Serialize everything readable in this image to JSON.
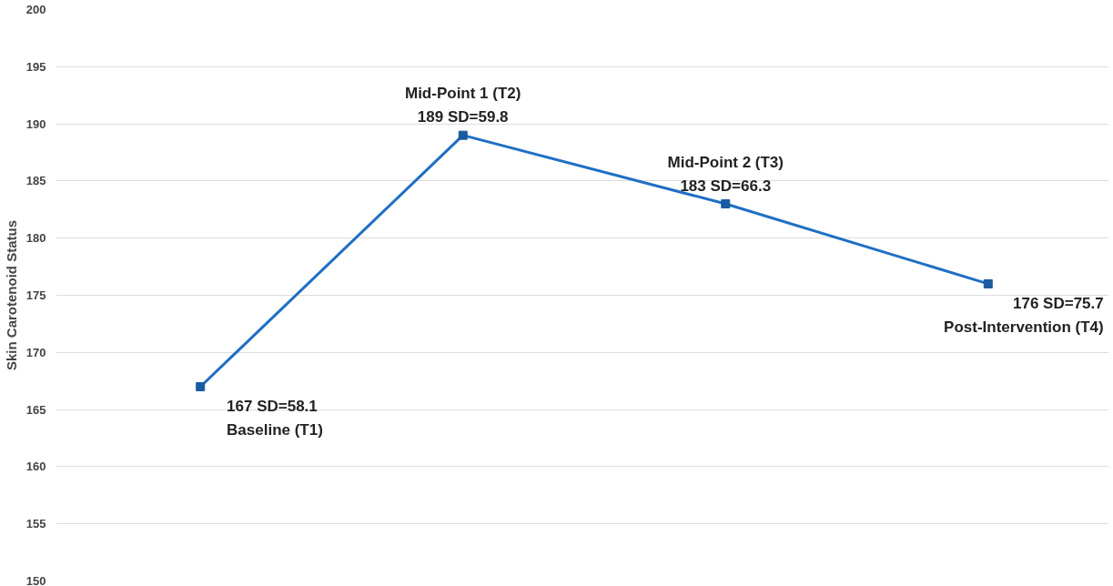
{
  "chart_data": {
    "type": "line",
    "ylabel": "Skin Carotenoid Status",
    "categories": [
      null,
      null,
      null,
      null
    ],
    "series": [
      {
        "color": "#1f6fc4",
        "values": [
          167,
          189,
          183,
          176
        ],
        "value_labels": [
          "167 SD=58.1",
          "189 SD=59.8",
          "183 SD=66.3",
          "176 SD=75.7"
        ]
      }
    ],
    "annotations": [
      "Baseline (T1)",
      "Mid-Point 1 (T2)",
      "Mid-Point 2 (T3)",
      "Post-Intervention (T4)"
    ],
    "ylim": [
      150,
      200
    ],
    "yticks": [
      150,
      155,
      160,
      165,
      170,
      175,
      180,
      185,
      190,
      195,
      200
    ],
    "grid": "y",
    "marker": "square",
    "line_style": "solid"
  }
}
